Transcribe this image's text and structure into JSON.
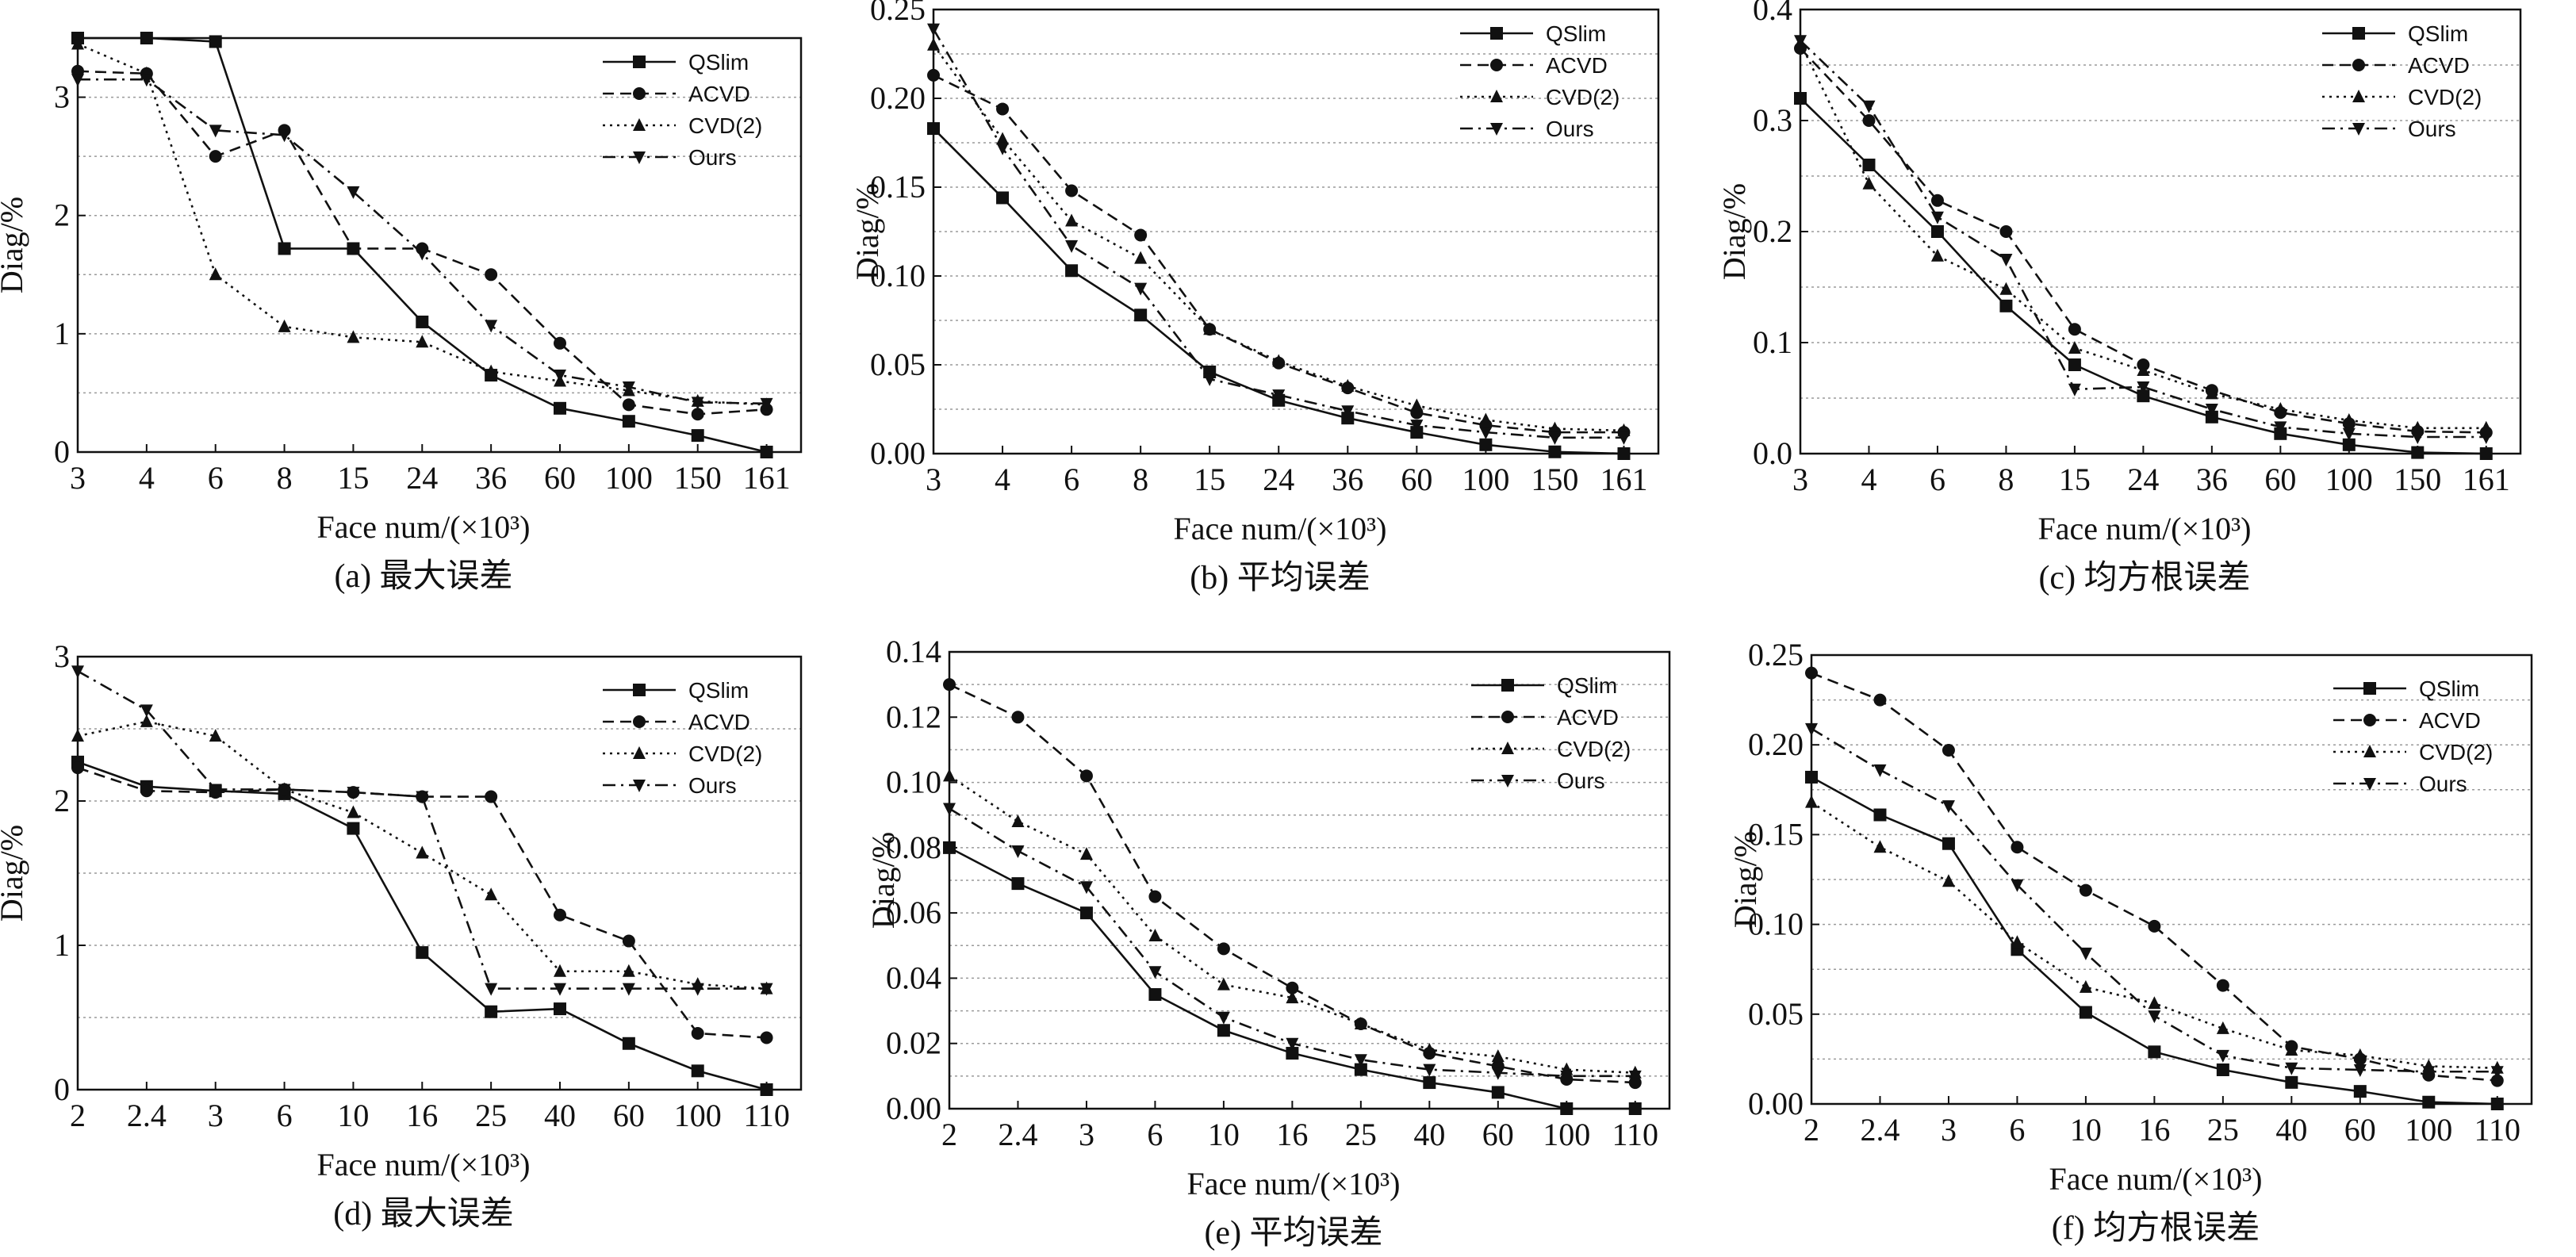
{
  "chart_data": [
    {
      "type": "line",
      "panel": "a",
      "caption": "(a) 最大误差",
      "xlabel": "Face num/(×10³)",
      "ylabel": "Diag/%",
      "categories": [
        "3",
        "4",
        "6",
        "8",
        "15",
        "24",
        "36",
        "60",
        "100",
        "150",
        "161"
      ],
      "ylim": [
        0,
        3.5
      ],
      "yticks": [
        0,
        1,
        2,
        3
      ],
      "ytick_labels": [
        "0",
        "1",
        "2",
        "3"
      ],
      "grid": "horizontal-dotted",
      "legend_position": "top-right",
      "series": [
        {
          "name": "QSlim",
          "values": [
            3.5,
            3.5,
            3.47,
            1.72,
            1.72,
            1.1,
            0.65,
            0.37,
            0.26,
            0.14,
            0.0
          ]
        },
        {
          "name": "ACVD",
          "values": [
            3.22,
            3.2,
            2.5,
            2.72,
            1.72,
            1.72,
            1.5,
            0.92,
            0.4,
            0.32,
            0.36
          ]
        },
        {
          "name": "CVD(2)",
          "values": [
            3.45,
            3.2,
            1.5,
            1.06,
            0.97,
            0.93,
            0.68,
            0.6,
            0.52,
            0.43,
            0.4
          ]
        },
        {
          "name": "Ours",
          "values": [
            3.15,
            3.15,
            2.72,
            2.68,
            2.2,
            1.68,
            1.07,
            0.65,
            0.55,
            0.42,
            0.41
          ]
        }
      ]
    },
    {
      "type": "line",
      "panel": "b",
      "caption": "(b) 平均误差",
      "xlabel": "Face num/(×10³)",
      "ylabel": "Diag/%",
      "categories": [
        "3",
        "4",
        "6",
        "8",
        "15",
        "24",
        "36",
        "60",
        "100",
        "150",
        "161"
      ],
      "ylim": [
        0,
        0.25
      ],
      "yticks": [
        0,
        0.05,
        0.1,
        0.15,
        0.2,
        0.25
      ],
      "ytick_labels": [
        "0.00",
        "0.05",
        "0.10",
        "0.15",
        "0.20",
        "0.25"
      ],
      "grid": "horizontal-dotted",
      "legend_position": "top-right",
      "series": [
        {
          "name": "QSlim",
          "values": [
            0.183,
            0.144,
            0.103,
            0.078,
            0.046,
            0.03,
            0.02,
            0.012,
            0.005,
            0.001,
            0.0
          ]
        },
        {
          "name": "ACVD",
          "values": [
            0.213,
            0.194,
            0.148,
            0.123,
            0.07,
            0.051,
            0.037,
            0.023,
            0.016,
            0.012,
            0.012
          ]
        },
        {
          "name": "CVD(2)",
          "values": [
            0.23,
            0.177,
            0.131,
            0.11,
            0.07,
            0.052,
            0.038,
            0.027,
            0.019,
            0.014,
            0.013
          ]
        },
        {
          "name": "Ours",
          "values": [
            0.239,
            0.172,
            0.117,
            0.093,
            0.042,
            0.033,
            0.024,
            0.016,
            0.012,
            0.009,
            0.009
          ]
        }
      ]
    },
    {
      "type": "line",
      "panel": "c",
      "caption": "(c) 均方根误差",
      "xlabel": "Face num/(×10³)",
      "ylabel": "Diag/%",
      "categories": [
        "3",
        "4",
        "6",
        "8",
        "15",
        "24",
        "36",
        "60",
        "100",
        "150",
        "161"
      ],
      "ylim": [
        0,
        0.4
      ],
      "yticks": [
        0,
        0.1,
        0.2,
        0.3,
        0.4
      ],
      "ytick_labels": [
        "0.0",
        "0.1",
        "0.2",
        "0.3",
        "0.4"
      ],
      "grid": "horizontal-dotted",
      "legend_position": "top-right",
      "series": [
        {
          "name": "QSlim",
          "values": [
            0.32,
            0.26,
            0.2,
            0.133,
            0.08,
            0.052,
            0.033,
            0.018,
            0.008,
            0.001,
            0.0
          ]
        },
        {
          "name": "ACVD",
          "values": [
            0.365,
            0.3,
            0.228,
            0.2,
            0.112,
            0.08,
            0.057,
            0.037,
            0.027,
            0.02,
            0.019
          ]
        },
        {
          "name": "CVD(2)",
          "values": [
            0.37,
            0.243,
            0.178,
            0.148,
            0.095,
            0.075,
            0.054,
            0.04,
            0.03,
            0.023,
            0.023
          ]
        },
        {
          "name": "Ours",
          "values": [
            0.372,
            0.313,
            0.213,
            0.175,
            0.058,
            0.06,
            0.04,
            0.024,
            0.018,
            0.015,
            0.015
          ]
        }
      ]
    },
    {
      "type": "line",
      "panel": "d",
      "caption": "(d) 最大误差",
      "xlabel": "Face num/(×10³)",
      "ylabel": "Diag/%",
      "categories": [
        "2",
        "2.4",
        "3",
        "6",
        "10",
        "16",
        "25",
        "40",
        "60",
        "100",
        "110"
      ],
      "ylim": [
        0,
        3
      ],
      "yticks": [
        0,
        1,
        2,
        3
      ],
      "ytick_labels": [
        "0",
        "1",
        "2",
        "3"
      ],
      "grid": "horizontal-dotted",
      "legend_position": "top-right",
      "series": [
        {
          "name": "QSlim",
          "values": [
            2.27,
            2.1,
            2.07,
            2.05,
            1.81,
            0.95,
            0.54,
            0.56,
            0.32,
            0.13,
            0.0
          ]
        },
        {
          "name": "ACVD",
          "values": [
            2.23,
            2.07,
            2.06,
            2.08,
            2.06,
            2.03,
            2.03,
            1.21,
            1.03,
            0.39,
            0.36
          ]
        },
        {
          "name": "CVD(2)",
          "values": [
            2.45,
            2.55,
            2.45,
            2.08,
            1.92,
            1.64,
            1.35,
            0.82,
            0.82,
            0.73,
            0.7
          ]
        },
        {
          "name": "Ours",
          "values": [
            2.9,
            2.63,
            2.08,
            2.08,
            2.06,
            2.03,
            0.7,
            0.7,
            0.7,
            0.7,
            0.7
          ]
        }
      ]
    },
    {
      "type": "line",
      "panel": "e",
      "caption": "(e) 平均误差",
      "xlabel": "Face num/(×10³)",
      "ylabel": "Diag/%",
      "categories": [
        "2",
        "2.4",
        "3",
        "6",
        "10",
        "16",
        "25",
        "40",
        "60",
        "100",
        "110"
      ],
      "ylim": [
        0,
        0.14
      ],
      "yticks": [
        0,
        0.02,
        0.04,
        0.06,
        0.08,
        0.1,
        0.12,
        0.14
      ],
      "ytick_labels": [
        "0.00",
        "0.02",
        "0.04",
        "0.06",
        "0.08",
        "0.10",
        "0.12",
        "0.14"
      ],
      "grid": "horizontal-dotted",
      "legend_position": "top-right",
      "series": [
        {
          "name": "QSlim",
          "values": [
            0.08,
            0.069,
            0.06,
            0.035,
            0.024,
            0.017,
            0.012,
            0.008,
            0.005,
            0.0,
            0.0
          ]
        },
        {
          "name": "ACVD",
          "values": [
            0.13,
            0.12,
            0.102,
            0.065,
            0.049,
            0.037,
            0.026,
            0.017,
            0.013,
            0.009,
            0.008
          ]
        },
        {
          "name": "CVD(2)",
          "values": [
            0.102,
            0.088,
            0.078,
            0.053,
            0.038,
            0.034,
            0.026,
            0.018,
            0.016,
            0.012,
            0.011
          ]
        },
        {
          "name": "Ours",
          "values": [
            0.092,
            0.079,
            0.068,
            0.042,
            0.028,
            0.02,
            0.015,
            0.012,
            0.011,
            0.01,
            0.01
          ]
        }
      ]
    },
    {
      "type": "line",
      "panel": "f",
      "caption": "(f) 均方根误差",
      "xlabel": "Face num/(×10³)",
      "ylabel": "Diag/%",
      "categories": [
        "2",
        "2.4",
        "3",
        "6",
        "10",
        "16",
        "25",
        "40",
        "60",
        "100",
        "110"
      ],
      "ylim": [
        0,
        0.25
      ],
      "yticks": [
        0,
        0.05,
        0.1,
        0.15,
        0.2,
        0.25
      ],
      "ytick_labels": [
        "0.00",
        "0.05",
        "0.10",
        "0.15",
        "0.20",
        "0.25"
      ],
      "grid": "horizontal-dotted",
      "legend_position": "top-right",
      "series": [
        {
          "name": "QSlim",
          "values": [
            0.182,
            0.161,
            0.145,
            0.086,
            0.051,
            0.029,
            0.019,
            0.012,
            0.007,
            0.001,
            0.0
          ]
        },
        {
          "name": "ACVD",
          "values": [
            0.24,
            0.225,
            0.197,
            0.143,
            0.119,
            0.099,
            0.066,
            0.032,
            0.025,
            0.016,
            0.013
          ]
        },
        {
          "name": "CVD(2)",
          "values": [
            0.168,
            0.143,
            0.124,
            0.09,
            0.065,
            0.056,
            0.042,
            0.03,
            0.027,
            0.021,
            0.02
          ]
        },
        {
          "name": "Ours",
          "values": [
            0.209,
            0.186,
            0.166,
            0.122,
            0.084,
            0.049,
            0.027,
            0.02,
            0.019,
            0.018,
            0.018
          ]
        }
      ]
    }
  ],
  "series_styles": [
    {
      "name": "QSlim",
      "color": "#111111",
      "dash": "solid",
      "marker": "square"
    },
    {
      "name": "ACVD",
      "color": "#111111",
      "dash": "dashed",
      "marker": "circle"
    },
    {
      "name": "CVD(2)",
      "color": "#111111",
      "dash": "dotted",
      "marker": "triangle-up"
    },
    {
      "name": "Ours",
      "color": "#111111",
      "dash": "dash-dot",
      "marker": "triangle-down"
    }
  ]
}
